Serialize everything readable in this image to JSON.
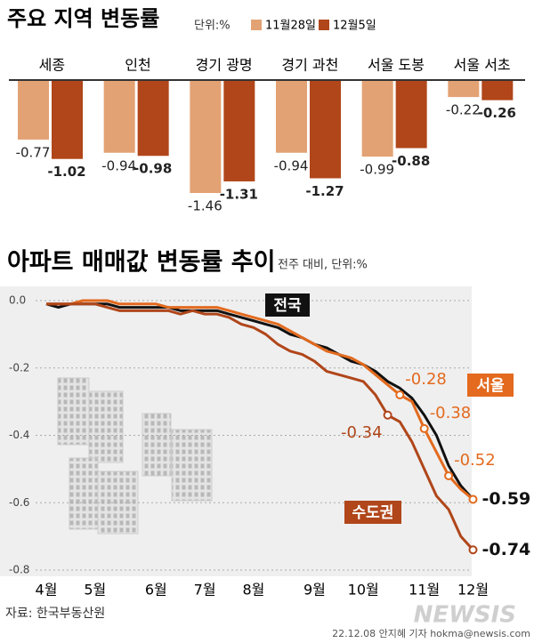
{
  "chart_data": [
    {
      "type": "bar",
      "title": "주요 지역 변동률",
      "unit": "단위:%",
      "categories": [
        "세종",
        "인천",
        "경기 광명",
        "경기 과천",
        "서울 도봉",
        "서울 서초"
      ],
      "series": [
        {
          "name": "11월28일",
          "color": "#e3a274",
          "values": [
            -0.77,
            -0.94,
            -1.46,
            -0.94,
            -0.99,
            -0.22
          ]
        },
        {
          "name": "12월5일",
          "color": "#b0461a",
          "values": [
            -1.02,
            -0.98,
            -1.31,
            -1.27,
            -0.88,
            -0.26
          ]
        }
      ]
    },
    {
      "type": "line",
      "title": "아파트 매매값 변동률 추이",
      "subtitle": "전주 대비, 단위:%",
      "categories": [
        "4월",
        null,
        null,
        null,
        "5월",
        null,
        null,
        null,
        null,
        "6월",
        null,
        null,
        null,
        "7월",
        null,
        null,
        null,
        "8월",
        null,
        null,
        null,
        null,
        "9월",
        null,
        null,
        null,
        "10월",
        null,
        null,
        null,
        null,
        "11월",
        null,
        null,
        null,
        "12월"
      ],
      "ylim": [
        -0.8,
        0
      ],
      "yticks": [
        {
          "value": 0,
          "label": "0.0"
        },
        -0.2,
        -0.4,
        -0.6,
        -0.8
      ],
      "grid": true,
      "series": [
        {
          "name": "전국",
          "color": "#111111",
          "values": [
            -0.01,
            -0.02,
            -0.01,
            -0.01,
            -0.01,
            -0.01,
            -0.02,
            -0.02,
            -0.02,
            -0.02,
            -0.02,
            -0.03,
            -0.03,
            -0.03,
            -0.03,
            -0.04,
            -0.05,
            -0.06,
            -0.07,
            -0.08,
            -0.1,
            -0.11,
            -0.13,
            -0.14,
            -0.16,
            -0.18,
            -0.19,
            -0.21,
            -0.24,
            -0.26,
            -0.29,
            -0.34,
            -0.4,
            -0.49,
            -0.55,
            -0.59
          ],
          "value_labels": [
            null,
            null,
            null,
            null,
            null,
            null,
            null,
            null,
            null,
            null,
            null,
            null,
            null,
            null,
            null,
            null,
            null,
            null,
            null,
            null,
            null,
            null,
            null,
            null,
            null,
            null,
            null,
            null,
            null,
            null,
            null,
            null,
            null,
            null,
            null,
            null
          ]
        },
        {
          "name": "서울",
          "color": "#e36a1e",
          "values": [
            -0.01,
            -0.01,
            -0.01,
            0,
            0,
            0,
            -0.01,
            -0.01,
            -0.01,
            -0.01,
            -0.02,
            -0.02,
            -0.02,
            -0.02,
            -0.02,
            -0.03,
            -0.04,
            -0.05,
            -0.06,
            -0.07,
            -0.09,
            -0.11,
            -0.13,
            -0.15,
            -0.16,
            -0.17,
            -0.19,
            -0.22,
            -0.25,
            -0.28,
            -0.3,
            -0.38,
            -0.45,
            -0.52,
            -0.56,
            -0.59
          ],
          "value_labels": [
            null,
            null,
            null,
            null,
            null,
            null,
            null,
            null,
            null,
            null,
            null,
            null,
            null,
            null,
            null,
            null,
            null,
            null,
            null,
            null,
            null,
            null,
            null,
            null,
            null,
            null,
            null,
            null,
            null,
            "-0.28",
            null,
            "-0.38",
            null,
            "-0.52",
            null,
            "-0.59"
          ]
        },
        {
          "name": "수도권",
          "color": "#b0461a",
          "values": [
            -0.01,
            -0.01,
            -0.01,
            -0.01,
            -0.01,
            -0.02,
            -0.03,
            -0.03,
            -0.03,
            -0.03,
            -0.03,
            -0.04,
            -0.03,
            -0.04,
            -0.04,
            -0.05,
            -0.07,
            -0.08,
            -0.1,
            -0.13,
            -0.15,
            -0.16,
            -0.18,
            -0.21,
            -0.22,
            -0.23,
            -0.24,
            -0.28,
            -0.34,
            -0.36,
            -0.42,
            -0.5,
            -0.58,
            -0.62,
            -0.7,
            -0.74
          ],
          "value_labels": [
            null,
            null,
            null,
            null,
            null,
            null,
            null,
            null,
            null,
            null,
            null,
            null,
            null,
            null,
            null,
            null,
            null,
            null,
            null,
            null,
            null,
            null,
            null,
            null,
            null,
            null,
            null,
            null,
            "-0.34",
            null,
            null,
            null,
            null,
            null,
            null,
            "-0.74"
          ]
        }
      ]
    }
  ],
  "source": "자료: 한국부동산원",
  "credit": "22.12.08 안지혜 기자 hokma@newsis.com",
  "watermark": "NEWSIS"
}
